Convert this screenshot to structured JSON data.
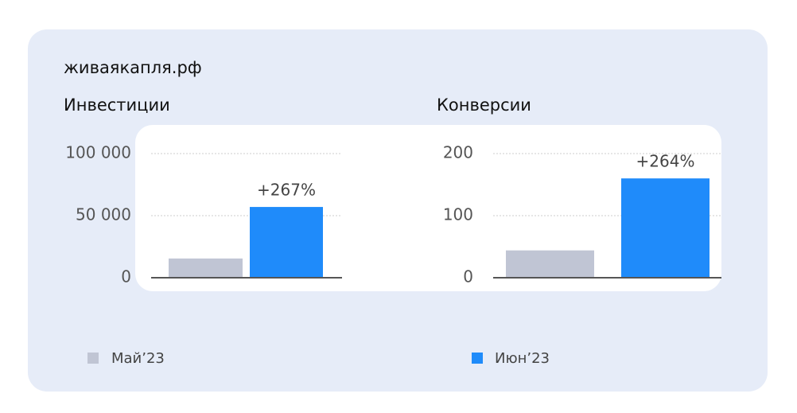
{
  "header": {
    "site": "живаякапля.рф"
  },
  "chart_data": [
    {
      "type": "bar",
      "title": "Инвестиции",
      "categories": [
        null
      ],
      "series": [
        {
          "name": "Май’23",
          "color": "#c0c5d4",
          "values": [
            15500
          ]
        },
        {
          "name": "Июн’23",
          "color": "#1f8bfa",
          "values": [
            57000
          ]
        }
      ],
      "annotation": "+267%",
      "ylim": [
        0,
        100000
      ],
      "yticks": [
        0,
        {
          "value": 50000,
          "label": "50 000"
        },
        {
          "value": 100000,
          "label": "100 000"
        }
      ],
      "grid": true
    },
    {
      "type": "bar",
      "title": "Конверсии",
      "categories": [
        null
      ],
      "series": [
        {
          "name": "Май’23",
          "color": "#c0c5d4",
          "values": [
            44
          ]
        },
        {
          "name": "Июн’23",
          "color": "#1f8bfa",
          "values": [
            160
          ]
        }
      ],
      "annotation": "+264%",
      "ylim": [
        0,
        200
      ],
      "yticks": [
        0,
        100,
        200
      ],
      "grid": true
    }
  ]
}
